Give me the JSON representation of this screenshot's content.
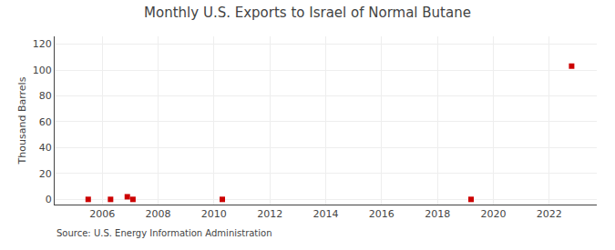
{
  "chart_data": {
    "type": "scatter",
    "title": "Monthly U.S. Exports to Israel of Normal Butane",
    "ylabel": "Thousand Barrels",
    "source": "Source: U.S. Energy Information Administration",
    "x": [
      2005.5,
      2006.3,
      2006.9,
      2007.1,
      2010.3,
      2019.2,
      2022.8
    ],
    "values": [
      0,
      0,
      2,
      0,
      0,
      0,
      103
    ],
    "color": "#cc0000",
    "marker": "square",
    "xlim": [
      2004.3,
      2023.7
    ],
    "ylim": [
      -4,
      126
    ],
    "xticks": [
      2006,
      2008,
      2010,
      2012,
      2014,
      2016,
      2018,
      2020,
      2022
    ],
    "yticks": [
      0,
      20,
      40,
      60,
      80,
      100,
      120
    ],
    "grid": true
  }
}
